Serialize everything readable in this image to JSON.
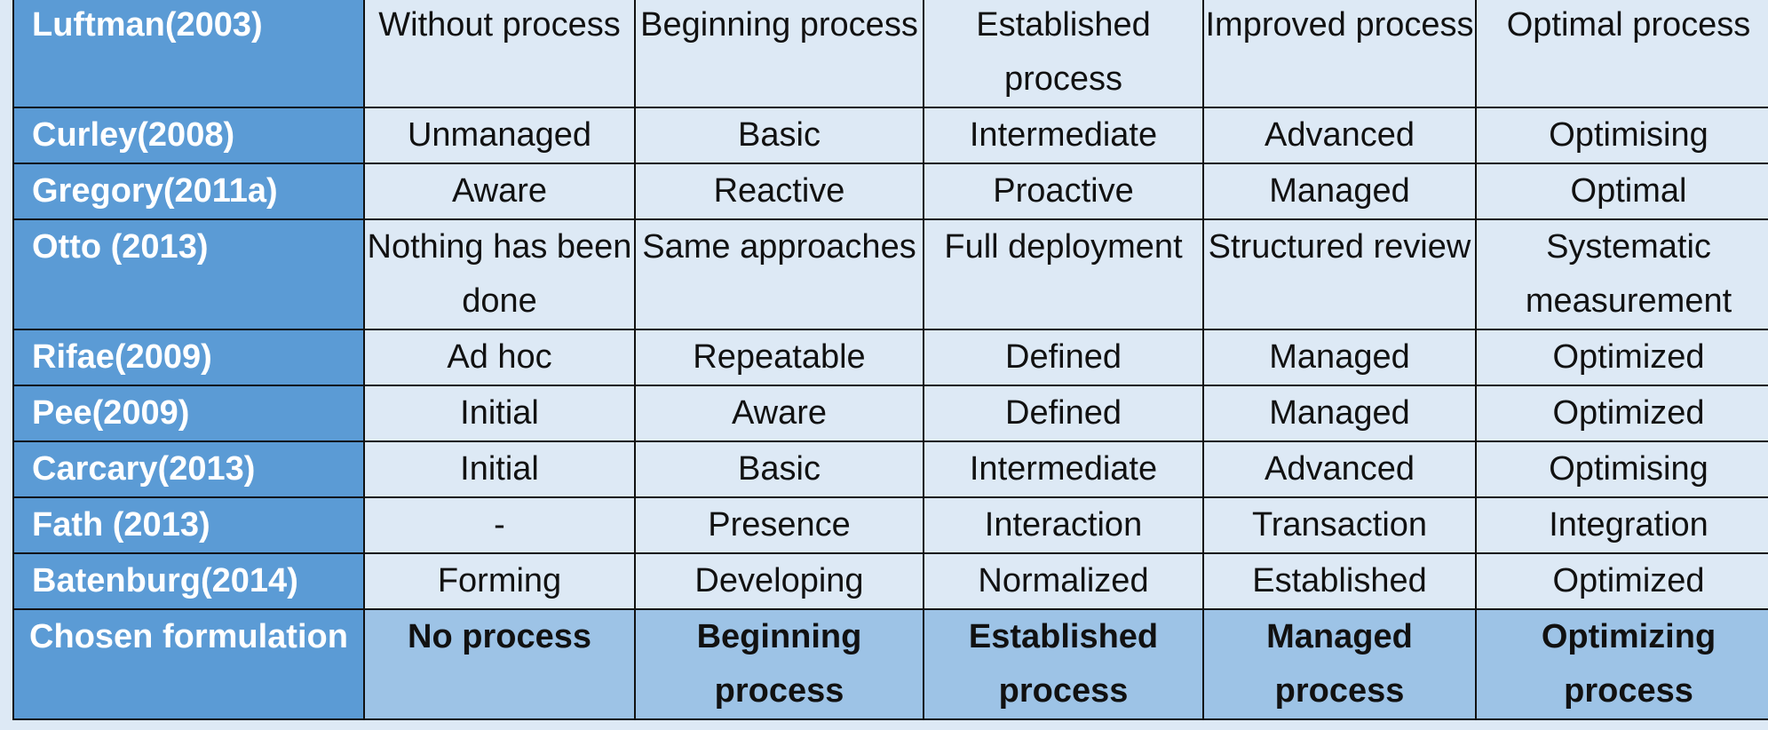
{
  "columns_count": 6,
  "rows": [
    {
      "source": "Luftman(2003)",
      "levels": [
        "Without process",
        "Beginning process",
        "Established process",
        "Improved process",
        "Optimal process"
      ]
    },
    {
      "source": "Curley(2008)",
      "levels": [
        "Unmanaged",
        "Basic",
        "Intermediate",
        "Advanced",
        "Optimising"
      ]
    },
    {
      "source": "Gregory(2011a)",
      "levels": [
        "Aware",
        "Reactive",
        "Proactive",
        "Managed",
        "Optimal"
      ]
    },
    {
      "source": "Otto (2013)",
      "levels": [
        "Nothing has been done",
        "Same approaches",
        "Full deployment",
        "Structured review",
        "Systematic measurement"
      ]
    },
    {
      "source": "Rifae(2009)",
      "levels": [
        "Ad hoc",
        "Repeatable",
        "Defined",
        "Managed",
        "Optimized"
      ]
    },
    {
      "source": "Pee(2009)",
      "levels": [
        "Initial",
        "Aware",
        "Defined",
        "Managed",
        "Optimized"
      ]
    },
    {
      "source": "Carcary(2013)",
      "levels": [
        "Initial",
        "Basic",
        "Intermediate",
        "Advanced",
        "Optimising"
      ]
    },
    {
      "source": "Fath (2013)",
      "levels": [
        "-",
        "Presence",
        "Interaction",
        "Transaction",
        "Integration"
      ]
    },
    {
      "source": "Batenburg(2014)",
      "levels": [
        "Forming",
        "Developing",
        "Normalized",
        "Established",
        "Optimized"
      ]
    }
  ],
  "chosen": {
    "source": "Chosen formulation",
    "levels": [
      "No process",
      "Beginning process",
      "Established process",
      "Managed process",
      "Optimizing process"
    ]
  },
  "colors": {
    "source_column": "#5b9bd5",
    "cell": "#dde9f5",
    "chosen_row": "#9dc3e6",
    "border": "#111111"
  }
}
